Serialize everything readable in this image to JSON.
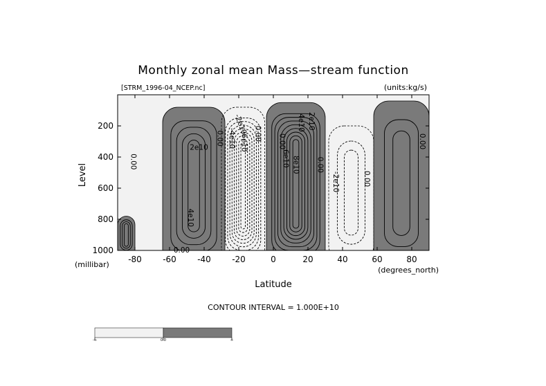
{
  "chart_data": {
    "type": "contour",
    "title": "Monthly zonal mean Mass—stream function",
    "file_label": "[STRM_1996-04_NCEP.nc]",
    "units_label": "(units:kg/s)",
    "xlabel": "Latitude",
    "x_unit_label": "(degrees_north)",
    "ylabel": "Level",
    "y_unit_label": "(millibar)",
    "xlim": [
      -90,
      90
    ],
    "ylim": [
      1000,
      0
    ],
    "x_ticks": [
      -80,
      -60,
      -40,
      -20,
      0,
      20,
      40,
      60,
      80
    ],
    "y_ticks": [
      200,
      400,
      600,
      800,
      1000
    ],
    "contour_interval_text": "CONTOUR INTERVAL = 1.000E+10",
    "contour_interval": 10000000000.0,
    "fill_colors": {
      "negative": "#f2f2f2",
      "positive": "#7a7a7a"
    },
    "colorbar": {
      "labels": [
        "-∞",
        "0.0",
        "∞"
      ]
    },
    "cells": [
      {
        "name": "southern-polar-positive",
        "sign": 1,
        "lat_range": [
          -90,
          -80
        ],
        "lev_range": [
          780,
          1000
        ],
        "levels": 3
      },
      {
        "name": "southern-ferrel-positive",
        "sign": 1,
        "lat_range": [
          -64,
          -28
        ],
        "lev_range": [
          80,
          1000
        ],
        "levels": 4
      },
      {
        "name": "southern-hadley-negative",
        "sign": -1,
        "lat_range": [
          -30,
          -5
        ],
        "lev_range": [
          80,
          1000
        ],
        "levels": 8
      },
      {
        "name": "northern-hadley-positive",
        "sign": 1,
        "lat_range": [
          -4,
          30
        ],
        "lev_range": [
          50,
          1000
        ],
        "levels": 8
      },
      {
        "name": "northern-ferrel-negative",
        "sign": -1,
        "lat_range": [
          32,
          58
        ],
        "lev_range": [
          200,
          980
        ],
        "levels": 2
      },
      {
        "name": "northern-polar-positive",
        "sign": 1,
        "lat_range": [
          58,
          90
        ],
        "lev_range": [
          40,
          1000
        ],
        "levels": 2
      }
    ],
    "contour_labels": [
      {
        "text": "0.00",
        "lat": -81,
        "lev": 430,
        "rotate": 90
      },
      {
        "text": "2e10",
        "lat": -43,
        "lev": 340,
        "rotate": 0
      },
      {
        "text": "4e10",
        "lat": -48,
        "lev": 790,
        "rotate": 90
      },
      {
        "text": "0.00",
        "lat": -53,
        "lev": 1000,
        "rotate": 0
      },
      {
        "text": "0.00",
        "lat": -31,
        "lev": 280,
        "rotate": 90
      },
      {
        "text": "-4e10",
        "lat": -24,
        "lev": 280,
        "rotate": 90
      },
      {
        "text": "-2e10",
        "lat": -19,
        "lev": 190,
        "rotate": 70
      },
      {
        "text": "-6e10",
        "lat": -17,
        "lev": 300,
        "rotate": 90
      },
      {
        "text": "0.00",
        "lat": -9,
        "lev": 250,
        "rotate": 90
      },
      {
        "text": "0.00",
        "lat": 5,
        "lev": 300,
        "rotate": 90
      },
      {
        "text": "6e10",
        "lat": 7,
        "lev": 410,
        "rotate": 90
      },
      {
        "text": "8e10",
        "lat": 13,
        "lev": 450,
        "rotate": 90
      },
      {
        "text": "4e10",
        "lat": 16,
        "lev": 180,
        "rotate": 90
      },
      {
        "text": "2e10",
        "lat": 22,
        "lev": 170,
        "rotate": 90
      },
      {
        "text": "0.00",
        "lat": 27,
        "lev": 450,
        "rotate": 90
      },
      {
        "text": "-2e10",
        "lat": 36,
        "lev": 560,
        "rotate": 90
      },
      {
        "text": "0.00",
        "lat": 54,
        "lev": 540,
        "rotate": 90
      },
      {
        "text": "0.00",
        "lat": 86,
        "lev": 300,
        "rotate": 90
      }
    ]
  }
}
